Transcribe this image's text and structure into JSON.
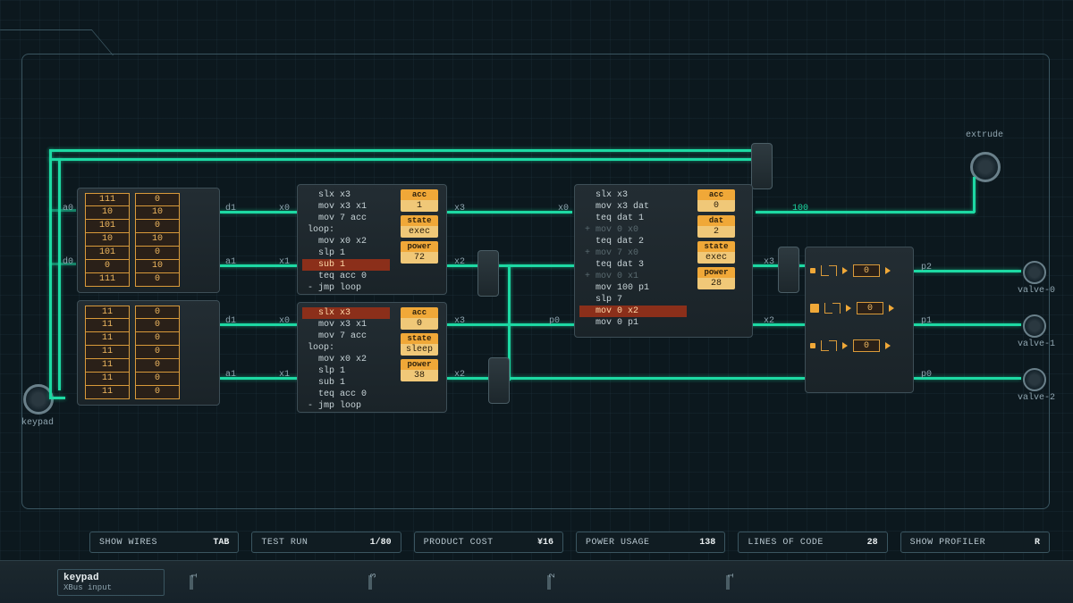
{
  "labels": {
    "keypad": "keypad",
    "extrude": "extrude",
    "valve0": "valve-0",
    "valve1": "valve-1",
    "valve2": "valve-2",
    "a0": "a0",
    "d0": "d0",
    "d1_1": "d1",
    "x0_1": "x0",
    "a1_1": "a1",
    "x1_1": "x1",
    "x3_1": "x3",
    "x2_1": "x2",
    "d1_2": "d1",
    "x0_2": "x0",
    "a1_2": "a1",
    "x1_2": "x1",
    "x3_2": "x3",
    "x2_2": "x2",
    "x0_3": "x0",
    "x3_3": "x3",
    "p0_3": "p0",
    "x2_3": "x2",
    "hundred": "100",
    "p2": "p2",
    "p1": "p1",
    "p0_4": "p0"
  },
  "rom1": {
    "col1": [
      "111",
      "10",
      "101",
      "10",
      "101",
      "0",
      "111"
    ],
    "col2": [
      "0",
      "10",
      "0",
      "10",
      "0",
      "10",
      "0"
    ]
  },
  "rom2": {
    "col1": [
      "11",
      "11",
      "11",
      "11",
      "11",
      "11",
      "11"
    ],
    "col2": [
      "0",
      "0",
      "0",
      "0",
      "0",
      "0",
      "0"
    ]
  },
  "mcu1": {
    "code": [
      "  slx x3",
      "  mov x3 x1",
      "  mov 7 acc",
      "loop:",
      "  mov x0 x2",
      "  slp 1",
      "  sub 1",
      "  teq acc 0",
      "- jmp loop"
    ],
    "hl": 6,
    "acc_lbl": "acc",
    "acc": "1",
    "state_lbl": "state",
    "state": "exec",
    "power_lbl": "power",
    "power": "72"
  },
  "mcu2": {
    "code": [
      "  slx x3",
      "  mov x3 x1",
      "  mov 7 acc",
      "loop:",
      "  mov x0 x2",
      "  slp 1",
      "  sub 1",
      "  teq acc 0",
      "- jmp loop"
    ],
    "hl": 0,
    "acc_lbl": "acc",
    "acc": "0",
    "state_lbl": "state",
    "state": "sleep",
    "power_lbl": "power",
    "power": "38"
  },
  "mcu3": {
    "code": [
      "  slx x3",
      "  mov x3 dat",
      "  teq dat 1",
      "+ mov 0 x0",
      "  teq dat 2",
      "+ mov 7 x0",
      "  teq dat 3",
      "+ mov 0 x1",
      "  mov 100 p1",
      "  slp 7",
      "  mov 0 x2",
      "  mov 0 p1"
    ],
    "hl": 10,
    "dim": [
      3,
      5,
      7
    ],
    "acc_lbl": "acc",
    "acc": "0",
    "dat_lbl": "dat",
    "dat": "2",
    "state_lbl": "state",
    "state": "exec",
    "power_lbl": "power",
    "power": "28"
  },
  "logic": {
    "z1": "0",
    "z2": "0",
    "z3": "0"
  },
  "status": {
    "wires_k": "SHOW WIRES",
    "wires_v": "TAB",
    "test_k": "TEST RUN",
    "test_v": "1/80",
    "cost_k": "PRODUCT COST",
    "cost_v": "¥16",
    "power_k": "POWER USAGE",
    "power_v": "138",
    "loc_k": "LINES OF CODE",
    "loc_v": "28",
    "prof_k": "SHOW PROFILER",
    "prof_v": "R"
  },
  "panel": {
    "track_t": "keypad",
    "track_s": "XBus input",
    "t1": "1",
    "t2": "3",
    "t3": "2",
    "t4": "1"
  }
}
